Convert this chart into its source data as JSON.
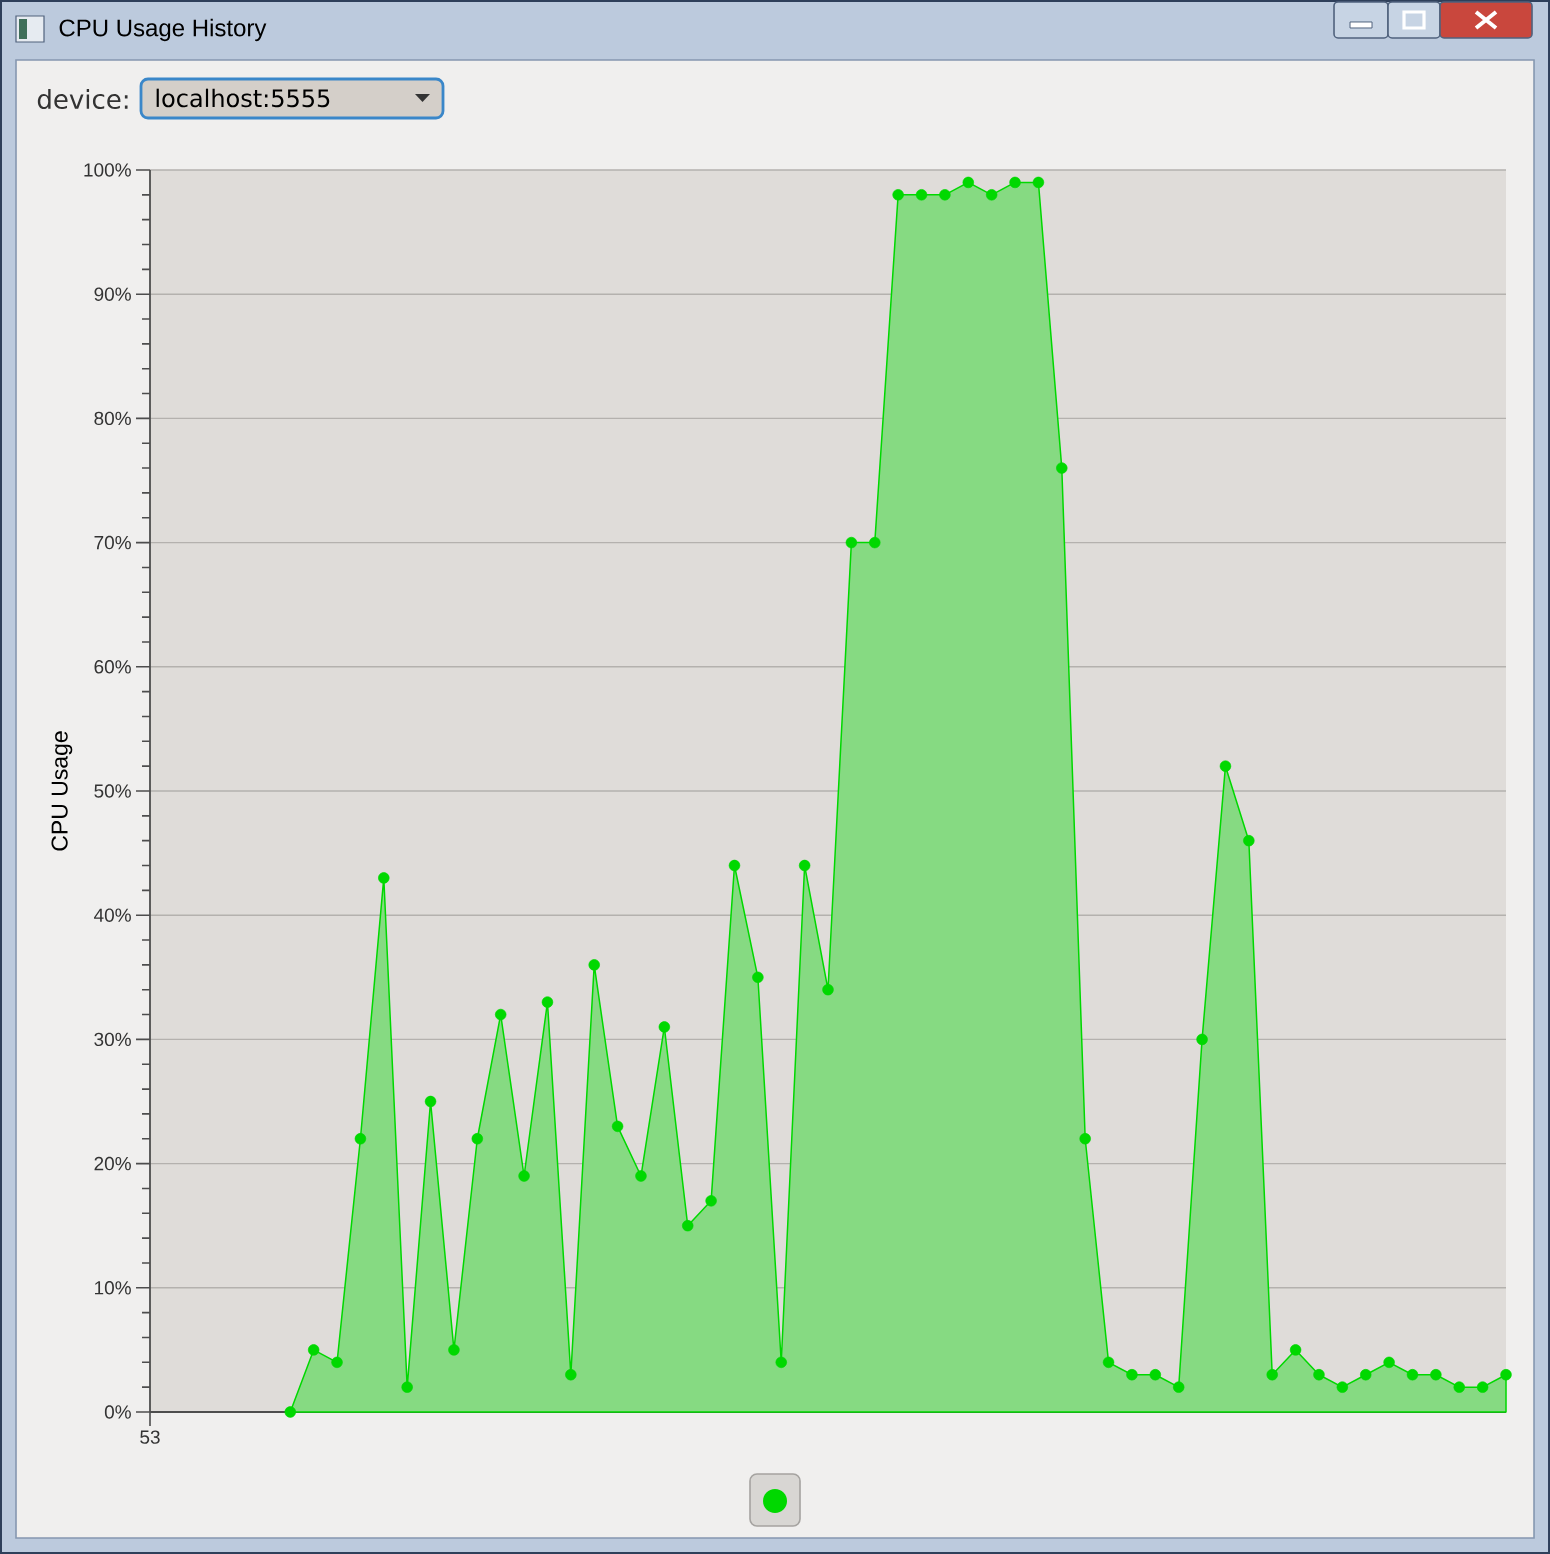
{
  "chart_data": {
    "type": "area",
    "title": "CPU Usage History",
    "ylabel": "CPU Usage",
    "annotations": [
      "device:",
      "localhost:5555"
    ],
    "categories": [
      "53",
      null,
      null,
      null,
      null,
      null,
      null,
      null,
      null,
      null,
      null,
      null,
      null,
      null,
      null,
      null,
      null,
      null,
      null,
      null,
      null,
      null,
      null,
      null,
      null,
      null,
      null,
      null,
      null,
      null,
      null,
      null,
      null,
      null,
      null,
      null,
      null,
      null,
      null,
      null,
      null,
      null,
      null,
      null,
      null,
      null,
      null,
      null,
      null,
      null,
      null,
      null,
      null,
      null,
      null,
      null,
      null,
      null,
      null
    ],
    "series": [
      {
        "color": "#00d800",
        "values": [
          null,
          null,
          null,
          null,
          null,
          null,
          0,
          5,
          4,
          22,
          43,
          2,
          25,
          5,
          22,
          32,
          19,
          33,
          3,
          36,
          23,
          19,
          31,
          15,
          17,
          44,
          35,
          4,
          44,
          34,
          70,
          70,
          98,
          98,
          98,
          99,
          98,
          99,
          99,
          76,
          22,
          4,
          3,
          3,
          2,
          30,
          52,
          46,
          3,
          5,
          3,
          2,
          3,
          4,
          3,
          3,
          2,
          2,
          3
        ]
      }
    ],
    "ylim": [
      0,
      100
    ],
    "yticks": [
      {
        "value": 0,
        "label": "0%"
      },
      {
        "value": 2,
        "label": null
      },
      {
        "value": 4,
        "label": null
      },
      {
        "value": 6,
        "label": null
      },
      {
        "value": 8,
        "label": null
      },
      {
        "value": 10,
        "label": "10%"
      },
      {
        "value": 12,
        "label": null
      },
      {
        "value": 14,
        "label": null
      },
      {
        "value": 16,
        "label": null
      },
      {
        "value": 18,
        "label": null
      },
      {
        "value": 20,
        "label": "20%"
      },
      {
        "value": 22,
        "label": null
      },
      {
        "value": 24,
        "label": null
      },
      {
        "value": 26,
        "label": null
      },
      {
        "value": 28,
        "label": null
      },
      {
        "value": 30,
        "label": "30%"
      },
      {
        "value": 32,
        "label": null
      },
      {
        "value": 34,
        "label": null
      },
      {
        "value": 36,
        "label": null
      },
      {
        "value": 38,
        "label": null
      },
      {
        "value": 40,
        "label": "40%"
      },
      {
        "value": 42,
        "label": null
      },
      {
        "value": 44,
        "label": null
      },
      {
        "value": 46,
        "label": null
      },
      {
        "value": 48,
        "label": null
      },
      {
        "value": 50,
        "label": "50%"
      },
      {
        "value": 52,
        "label": null
      },
      {
        "value": 54,
        "label": null
      },
      {
        "value": 56,
        "label": null
      },
      {
        "value": 58,
        "label": null
      },
      {
        "value": 60,
        "label": "60%"
      },
      {
        "value": 62,
        "label": null
      },
      {
        "value": 64,
        "label": null
      },
      {
        "value": 66,
        "label": null
      },
      {
        "value": 68,
        "label": null
      },
      {
        "value": 70,
        "label": "70%"
      },
      {
        "value": 72,
        "label": null
      },
      {
        "value": 74,
        "label": null
      },
      {
        "value": 76,
        "label": null
      },
      {
        "value": 78,
        "label": null
      },
      {
        "value": 80,
        "label": "80%"
      },
      {
        "value": 82,
        "label": null
      },
      {
        "value": 84,
        "label": null
      },
      {
        "value": 86,
        "label": null
      },
      {
        "value": 88,
        "label": null
      },
      {
        "value": 90,
        "label": "90%"
      },
      {
        "value": 92,
        "label": null
      },
      {
        "value": 94,
        "label": null
      },
      {
        "value": 96,
        "label": null
      },
      {
        "value": 98,
        "label": null
      },
      {
        "value": 100,
        "label": "100%"
      }
    ],
    "grid": "y",
    "marker": "circle",
    "line_style": "solid"
  }
}
